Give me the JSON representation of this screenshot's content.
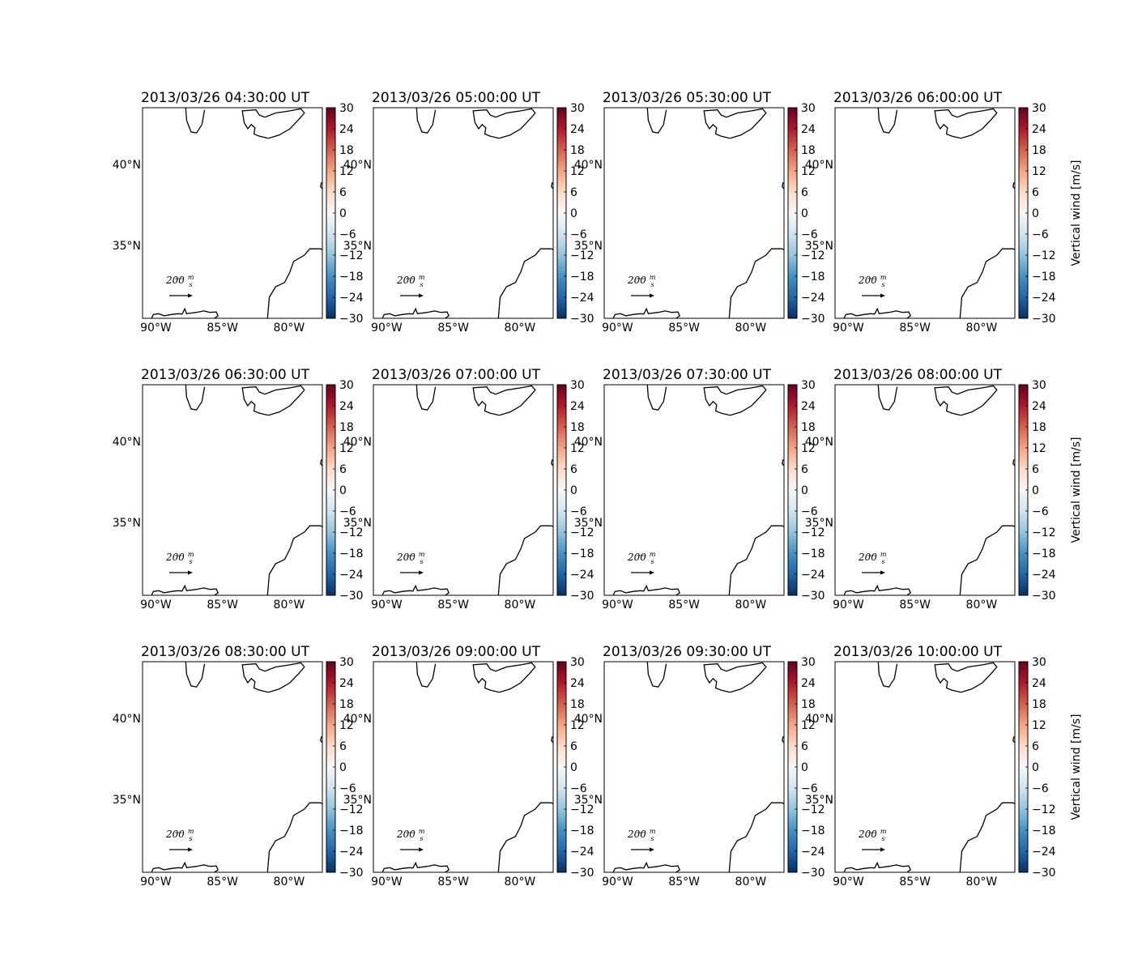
{
  "figure": {
    "cbar_ticks": [
      30,
      24,
      18,
      12,
      6,
      0,
      -6,
      -12,
      -18,
      -24,
      -30
    ],
    "cbar_tick_labels": [
      "30",
      "24",
      "18",
      "12",
      "6",
      "0",
      "−6",
      "−12",
      "−18",
      "−24",
      "−30"
    ],
    "lon_ticks": [
      -90,
      -85,
      -80
    ],
    "lon_tick_labels": [
      "90°W",
      "85°W",
      "80°W"
    ],
    "lat_ticks": [
      40,
      35
    ],
    "lat_tick_labels": [
      "40°N",
      "35°N"
    ],
    "cbar_label": "Vertical wind [m/s]",
    "quiver_key": {
      "value": "200",
      "num": "m",
      "den": "s"
    },
    "colormap": "RdBu_r",
    "colors": [
      "#67001f",
      "#b2182b",
      "#d6604d",
      "#f4a582",
      "#fddbc7",
      "#f7f7f7",
      "#d1e5f0",
      "#92c5de",
      "#4393c3",
      "#2166ac",
      "#053061"
    ]
  },
  "chart_data": [
    {
      "type": "heatmap",
      "title": "2013/03/26 04:30:00 UT",
      "xlim": [
        -91,
        -77.5
      ],
      "ylim": [
        30.5,
        43.5
      ],
      "clim": [
        -30,
        30
      ]
    },
    {
      "type": "heatmap",
      "title": "2013/03/26 05:00:00 UT",
      "xlim": [
        -91,
        -77.5
      ],
      "ylim": [
        30.5,
        43.5
      ],
      "clim": [
        -30,
        30
      ]
    },
    {
      "type": "heatmap",
      "title": "2013/03/26 05:30:00 UT",
      "xlim": [
        -91,
        -77.5
      ],
      "ylim": [
        30.5,
        43.5
      ],
      "clim": [
        -30,
        30
      ]
    },
    {
      "type": "heatmap",
      "title": "2013/03/26 06:00:00 UT",
      "xlim": [
        -91,
        -77.5
      ],
      "ylim": [
        30.5,
        43.5
      ],
      "clim": [
        -30,
        30
      ]
    },
    {
      "type": "heatmap",
      "title": "2013/03/26 06:30:00 UT",
      "xlim": [
        -91,
        -77.5
      ],
      "ylim": [
        30.5,
        43.5
      ],
      "clim": [
        -30,
        30
      ]
    },
    {
      "type": "heatmap",
      "title": "2013/03/26 07:00:00 UT",
      "xlim": [
        -91,
        -77.5
      ],
      "ylim": [
        30.5,
        43.5
      ],
      "clim": [
        -30,
        30
      ]
    },
    {
      "type": "heatmap",
      "title": "2013/03/26 07:30:00 UT",
      "xlim": [
        -91,
        -77.5
      ],
      "ylim": [
        30.5,
        43.5
      ],
      "clim": [
        -30,
        30
      ]
    },
    {
      "type": "heatmap",
      "title": "2013/03/26 08:00:00 UT",
      "xlim": [
        -91,
        -77.5
      ],
      "ylim": [
        30.5,
        43.5
      ],
      "clim": [
        -30,
        30
      ]
    },
    {
      "type": "heatmap",
      "title": "2013/03/26 08:30:00 UT",
      "xlim": [
        -91,
        -77.5
      ],
      "ylim": [
        30.5,
        43.5
      ],
      "clim": [
        -30,
        30
      ]
    },
    {
      "type": "heatmap",
      "title": "2013/03/26 09:00:00 UT",
      "xlim": [
        -91,
        -77.5
      ],
      "ylim": [
        30.5,
        43.5
      ],
      "clim": [
        -30,
        30
      ]
    },
    {
      "type": "heatmap",
      "title": "2013/03/26 09:30:00 UT",
      "xlim": [
        -91,
        -77.5
      ],
      "ylim": [
        30.5,
        43.5
      ],
      "clim": [
        -30,
        30
      ]
    },
    {
      "type": "heatmap",
      "title": "2013/03/26 10:00:00 UT",
      "xlim": [
        -91,
        -77.5
      ],
      "ylim": [
        30.5,
        43.5
      ],
      "clim": [
        -30,
        30
      ]
    }
  ]
}
